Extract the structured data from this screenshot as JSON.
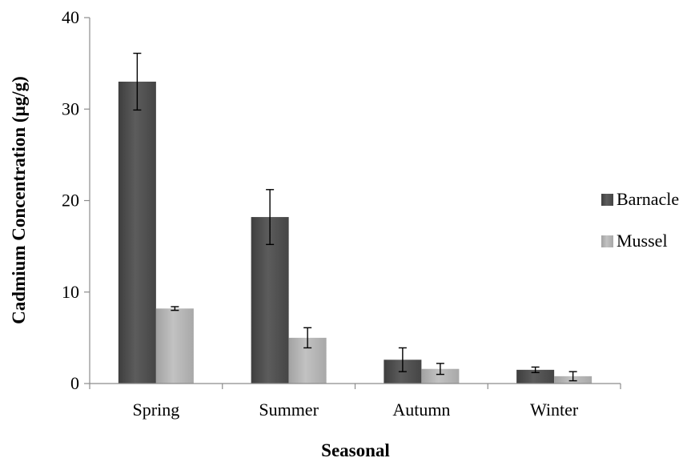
{
  "chart_data": {
    "type": "bar",
    "title": "",
    "xlabel": "Seasonal",
    "ylabel": "Cadmium Concentration (µg/g)",
    "categories": [
      "Spring",
      "Summer",
      "Autumn",
      "Winter"
    ],
    "ylim": [
      0,
      40
    ],
    "yticks": [
      0,
      10,
      20,
      30,
      40
    ],
    "grid": false,
    "legend_position": "right",
    "series": [
      {
        "name": "Barnacle",
        "color": "#505050",
        "values": [
          33.0,
          18.2,
          2.6,
          1.5
        ],
        "errors": [
          3.1,
          3.0,
          1.3,
          0.3
        ]
      },
      {
        "name": "Mussel",
        "color": "#b4b4b4",
        "values": [
          8.2,
          5.0,
          1.6,
          0.8
        ],
        "errors": [
          0.2,
          1.1,
          0.6,
          0.5
        ]
      }
    ]
  }
}
